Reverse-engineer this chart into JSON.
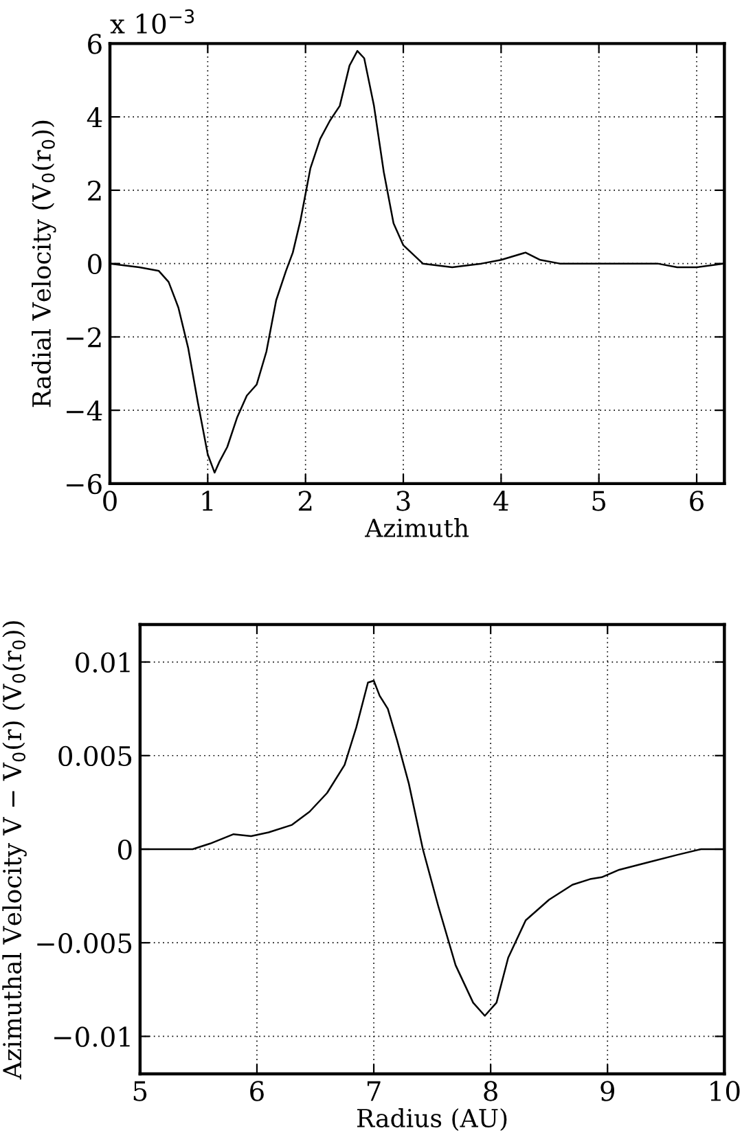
{
  "chart_data": [
    {
      "type": "line",
      "xlabel": "Azimuth",
      "ylabel": "Radial Velocity (V$_{0}$(r$_{0}$))",
      "annotations": [
        "x 10$^{−3}$"
      ],
      "grid": true,
      "line_style": "solid",
      "marker": "none",
      "xlim": [
        0,
        6.2832
      ],
      "xticks": [
        0,
        1,
        2,
        3,
        4,
        5,
        6
      ],
      "ylim": [
        -6,
        6
      ],
      "yticks": [
        {
          "value": -6,
          "label": "−6"
        },
        {
          "value": -4,
          "label": "−4"
        },
        {
          "value": -2,
          "label": "−2"
        },
        0,
        2,
        4,
        6
      ],
      "x": [
        0,
        0.3,
        0.5,
        0.6,
        0.7,
        0.8,
        0.9,
        1.0,
        1.07,
        1.12,
        1.2,
        1.3,
        1.4,
        1.5,
        1.6,
        1.7,
        1.8,
        1.87,
        1.95,
        2.05,
        2.15,
        2.25,
        2.35,
        2.45,
        2.53,
        2.6,
        2.7,
        2.8,
        2.9,
        3.0,
        3.2,
        3.5,
        3.8,
        4.0,
        4.25,
        4.4,
        4.6,
        4.8,
        5.0,
        5.2,
        5.45,
        5.6,
        5.8,
        6.0,
        6.2832
      ],
      "series": [
        {
          "color": "#000000",
          "values": [
            0.0,
            -0.1,
            -0.2,
            -0.5,
            -1.2,
            -2.3,
            -3.8,
            -5.2,
            -5.7,
            -5.4,
            -5.0,
            -4.2,
            -3.6,
            -3.3,
            -2.4,
            -1.0,
            -0.2,
            0.3,
            1.2,
            2.6,
            3.4,
            3.9,
            4.3,
            5.4,
            5.8,
            5.6,
            4.3,
            2.5,
            1.1,
            0.5,
            0.0,
            -0.1,
            0.0,
            0.1,
            0.3,
            0.1,
            0.0,
            0.0,
            0.0,
            0.0,
            0.0,
            0.0,
            -0.1,
            -0.1,
            0.0
          ]
        }
      ]
    },
    {
      "type": "line",
      "xlabel": "Radius (AU)",
      "ylabel": "Azimuthal Velocity V − V$_{0}$(r) (V$_{0}$(r$_{0}$))",
      "grid": true,
      "line_style": "solid",
      "marker": "none",
      "xlim": [
        5,
        10
      ],
      "xticks": [
        5,
        6,
        7,
        8,
        9,
        10
      ],
      "ylim": [
        -0.012,
        0.012
      ],
      "yticks": [
        {
          "value": -0.01,
          "label": "−0.01"
        },
        {
          "value": -0.005,
          "label": "−0.005"
        },
        0,
        0.005,
        0.01
      ],
      "x": [
        5,
        5.45,
        5.6,
        5.8,
        5.95,
        6.1,
        6.3,
        6.45,
        6.6,
        6.75,
        6.85,
        6.95,
        7.0,
        7.05,
        7.12,
        7.2,
        7.3,
        7.42,
        7.55,
        7.7,
        7.85,
        7.95,
        8.05,
        8.15,
        8.3,
        8.5,
        8.7,
        8.85,
        8.95,
        9.1,
        9.35,
        9.6,
        9.8,
        10
      ],
      "series": [
        {
          "color": "#000000",
          "values": [
            0,
            0,
            0.0003,
            0.0008,
            0.0007,
            0.0009,
            0.0013,
            0.002,
            0.003,
            0.0045,
            0.0065,
            0.0089,
            0.009,
            0.0082,
            0.0075,
            0.0058,
            0.0035,
            0.0,
            -0.003,
            -0.0062,
            -0.0082,
            -0.0089,
            -0.0082,
            -0.0058,
            -0.0038,
            -0.0027,
            -0.0019,
            -0.0016,
            -0.0015,
            -0.0011,
            -0.0007,
            -0.0003,
            0.0,
            0.0
          ]
        }
      ]
    }
  ]
}
